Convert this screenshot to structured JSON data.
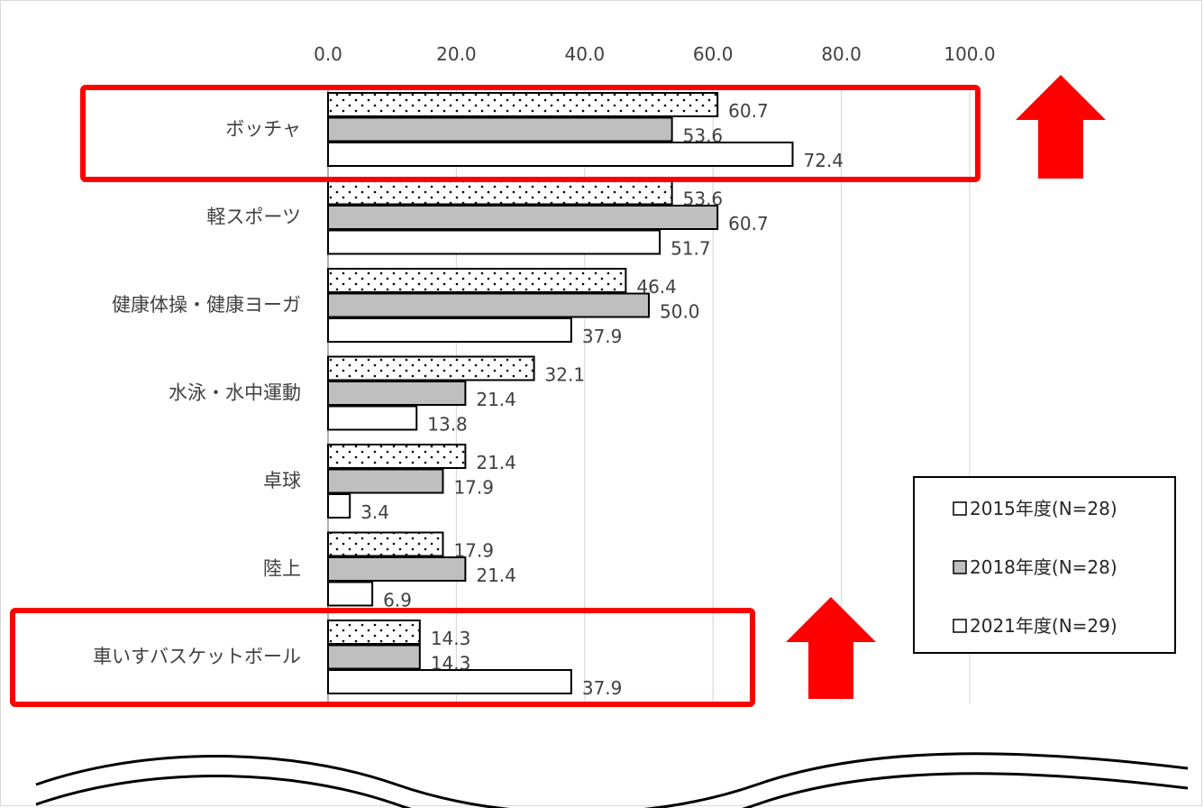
{
  "chart_data": {
    "type": "bar",
    "orientation": "horizontal",
    "categories": [
      "ボッチャ",
      "軽スポーツ",
      "健康体操・健康ヨーガ",
      "水泳・水中運動",
      "卓球",
      "陸上",
      "車いすバスケットボール"
    ],
    "series": [
      {
        "name": "2015年度(N=28)",
        "values": [
          60.7,
          53.6,
          46.4,
          32.1,
          21.4,
          17.9,
          14.3
        ],
        "fill": "dotted",
        "color": "#ffffff"
      },
      {
        "name": "2018年度(N=28)",
        "values": [
          53.6,
          60.7,
          50.0,
          21.4,
          17.9,
          21.4,
          14.3
        ],
        "fill": "solid",
        "color": "#bfbfbf"
      },
      {
        "name": "2021年度(N=29)",
        "values": [
          72.4,
          51.7,
          37.9,
          13.8,
          3.4,
          6.9,
          37.9
        ],
        "fill": "solid",
        "color": "#ffffff"
      }
    ],
    "xlim": [
      0,
      100
    ],
    "xticks": [
      "0.0",
      "20.0",
      "40.0",
      "60.0",
      "80.0",
      "100.0"
    ],
    "x_axis_position": "top",
    "grid": true,
    "data_labels": true,
    "legend_position": "bottom-right",
    "highlight_color": "#ff0000",
    "highlighted_categories": [
      "ボッチャ",
      "車いすバスケットボール"
    ],
    "annotations": [
      "up-arrow",
      "up-arrow"
    ]
  }
}
